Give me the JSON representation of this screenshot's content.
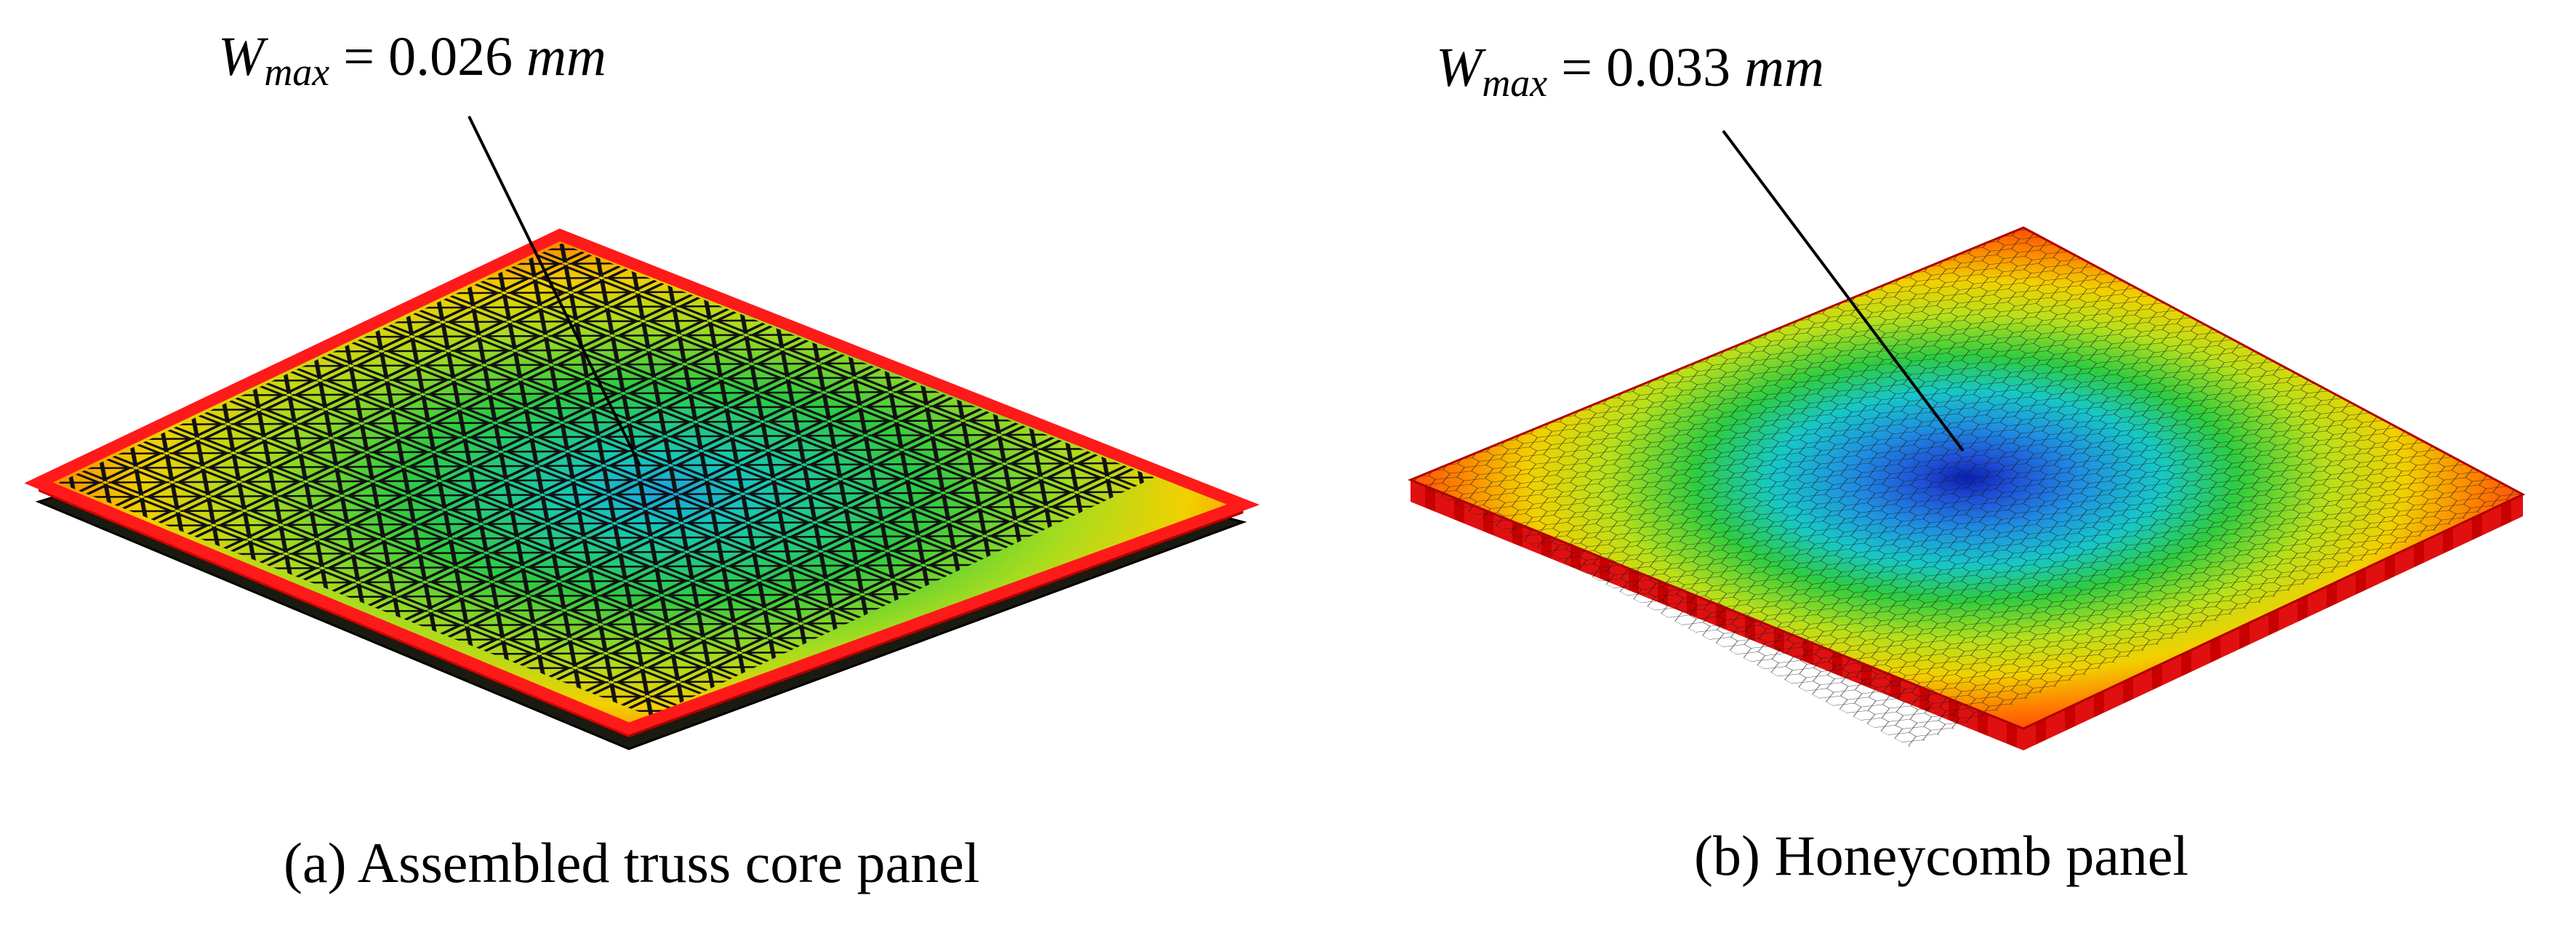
{
  "panels": [
    {
      "id": "truss",
      "annotation": {
        "symbol": "W",
        "subscript": "max",
        "equals": "=",
        "value": "0.026",
        "unit": "mm"
      },
      "caption": "(a) Assembled truss core panel"
    },
    {
      "id": "honeycomb",
      "annotation": {
        "symbol": "W",
        "subscript": "max",
        "equals": "=",
        "value": "0.033",
        "unit": "mm"
      },
      "caption": "(b) Honeycomb panel"
    }
  ],
  "colors": {
    "red": "#ff1a1a",
    "orange": "#ff8c00",
    "yellow": "#e6e600",
    "green": "#2ecc40",
    "cyan": "#17c7c7",
    "blue": "#1f4fd6",
    "dark_blue": "#0a1fb4",
    "bottom_sheet": "#1a1a10",
    "edge_red": "#d40000"
  }
}
